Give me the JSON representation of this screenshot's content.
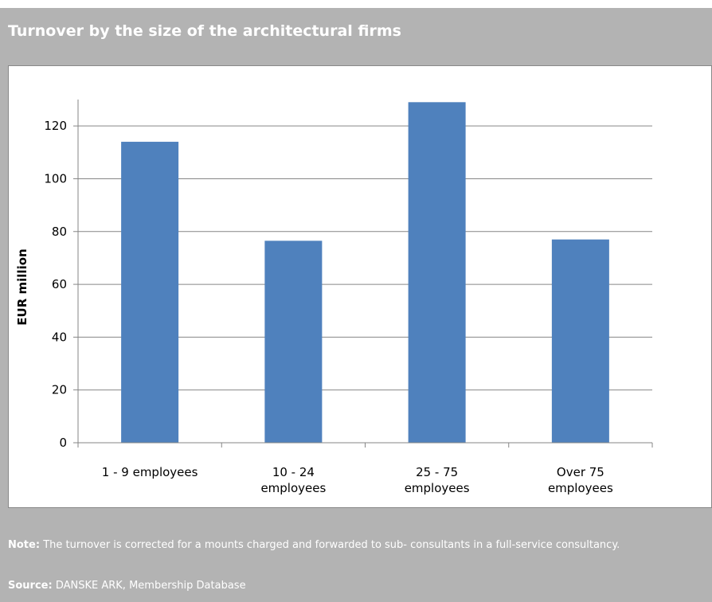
{
  "header": {
    "title": "Turnover by the size of the architectural firms"
  },
  "chart_data": {
    "type": "bar",
    "categories": [
      [
        "1 - 9 employees"
      ],
      [
        "10 - 24",
        "employees"
      ],
      [
        "25 - 75",
        "employees"
      ],
      [
        "Over 75",
        "employees"
      ]
    ],
    "values": [
      114,
      76.5,
      129,
      77
    ],
    "xlabel": "",
    "ylabel": "EUR million",
    "ylim": [
      0,
      130
    ],
    "yticks": [
      0,
      20,
      40,
      60,
      80,
      100,
      120
    ],
    "grid": true,
    "legend": "none",
    "bar_color": "#4f81bd",
    "grid_color": "#868686"
  },
  "footer": {
    "note_label": "Note:",
    "note_text": "The turnover is corrected for a mounts charged and forwarded to sub- consultants in a full-service consultancy.",
    "source_label": "Source:",
    "source_text": "DANSKE ARK, Membership Database"
  }
}
